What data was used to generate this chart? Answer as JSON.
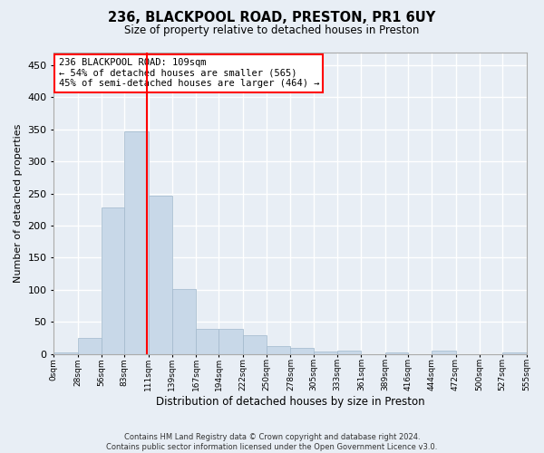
{
  "title_line1": "236, BLACKPOOL ROAD, PRESTON, PR1 6UY",
  "title_line2": "Size of property relative to detached houses in Preston",
  "xlabel": "Distribution of detached houses by size in Preston",
  "ylabel": "Number of detached properties",
  "bar_color": "#c8d8e8",
  "bar_edge_color": "#a0b8cc",
  "background_color": "#e8eef5",
  "grid_color": "white",
  "vline_x": 109,
  "vline_color": "red",
  "annotation_text": "236 BLACKPOOL ROAD: 109sqm\n← 54% of detached houses are smaller (565)\n45% of semi-detached houses are larger (464) →",
  "annotation_box_color": "white",
  "annotation_box_edge": "red",
  "footer_line1": "Contains HM Land Registry data © Crown copyright and database right 2024.",
  "footer_line2": "Contains public sector information licensed under the Open Government Licence v3.0.",
  "bin_edges": [
    0,
    28,
    56,
    83,
    111,
    139,
    167,
    194,
    222,
    250,
    278,
    305,
    333,
    361,
    389,
    416,
    444,
    472,
    500,
    527,
    555
  ],
  "bin_labels": [
    "0sqm",
    "28sqm",
    "56sqm",
    "83sqm",
    "111sqm",
    "139sqm",
    "167sqm",
    "194sqm",
    "222sqm",
    "250sqm",
    "278sqm",
    "305sqm",
    "333sqm",
    "361sqm",
    "389sqm",
    "416sqm",
    "444sqm",
    "472sqm",
    "500sqm",
    "527sqm",
    "555sqm"
  ],
  "bar_heights": [
    2,
    25,
    228,
    347,
    246,
    101,
    40,
    40,
    30,
    13,
    10,
    4,
    5,
    0,
    3,
    0,
    5,
    0,
    0,
    3
  ],
  "ylim": [
    0,
    470
  ],
  "yticks": [
    0,
    50,
    100,
    150,
    200,
    250,
    300,
    350,
    400,
    450
  ]
}
